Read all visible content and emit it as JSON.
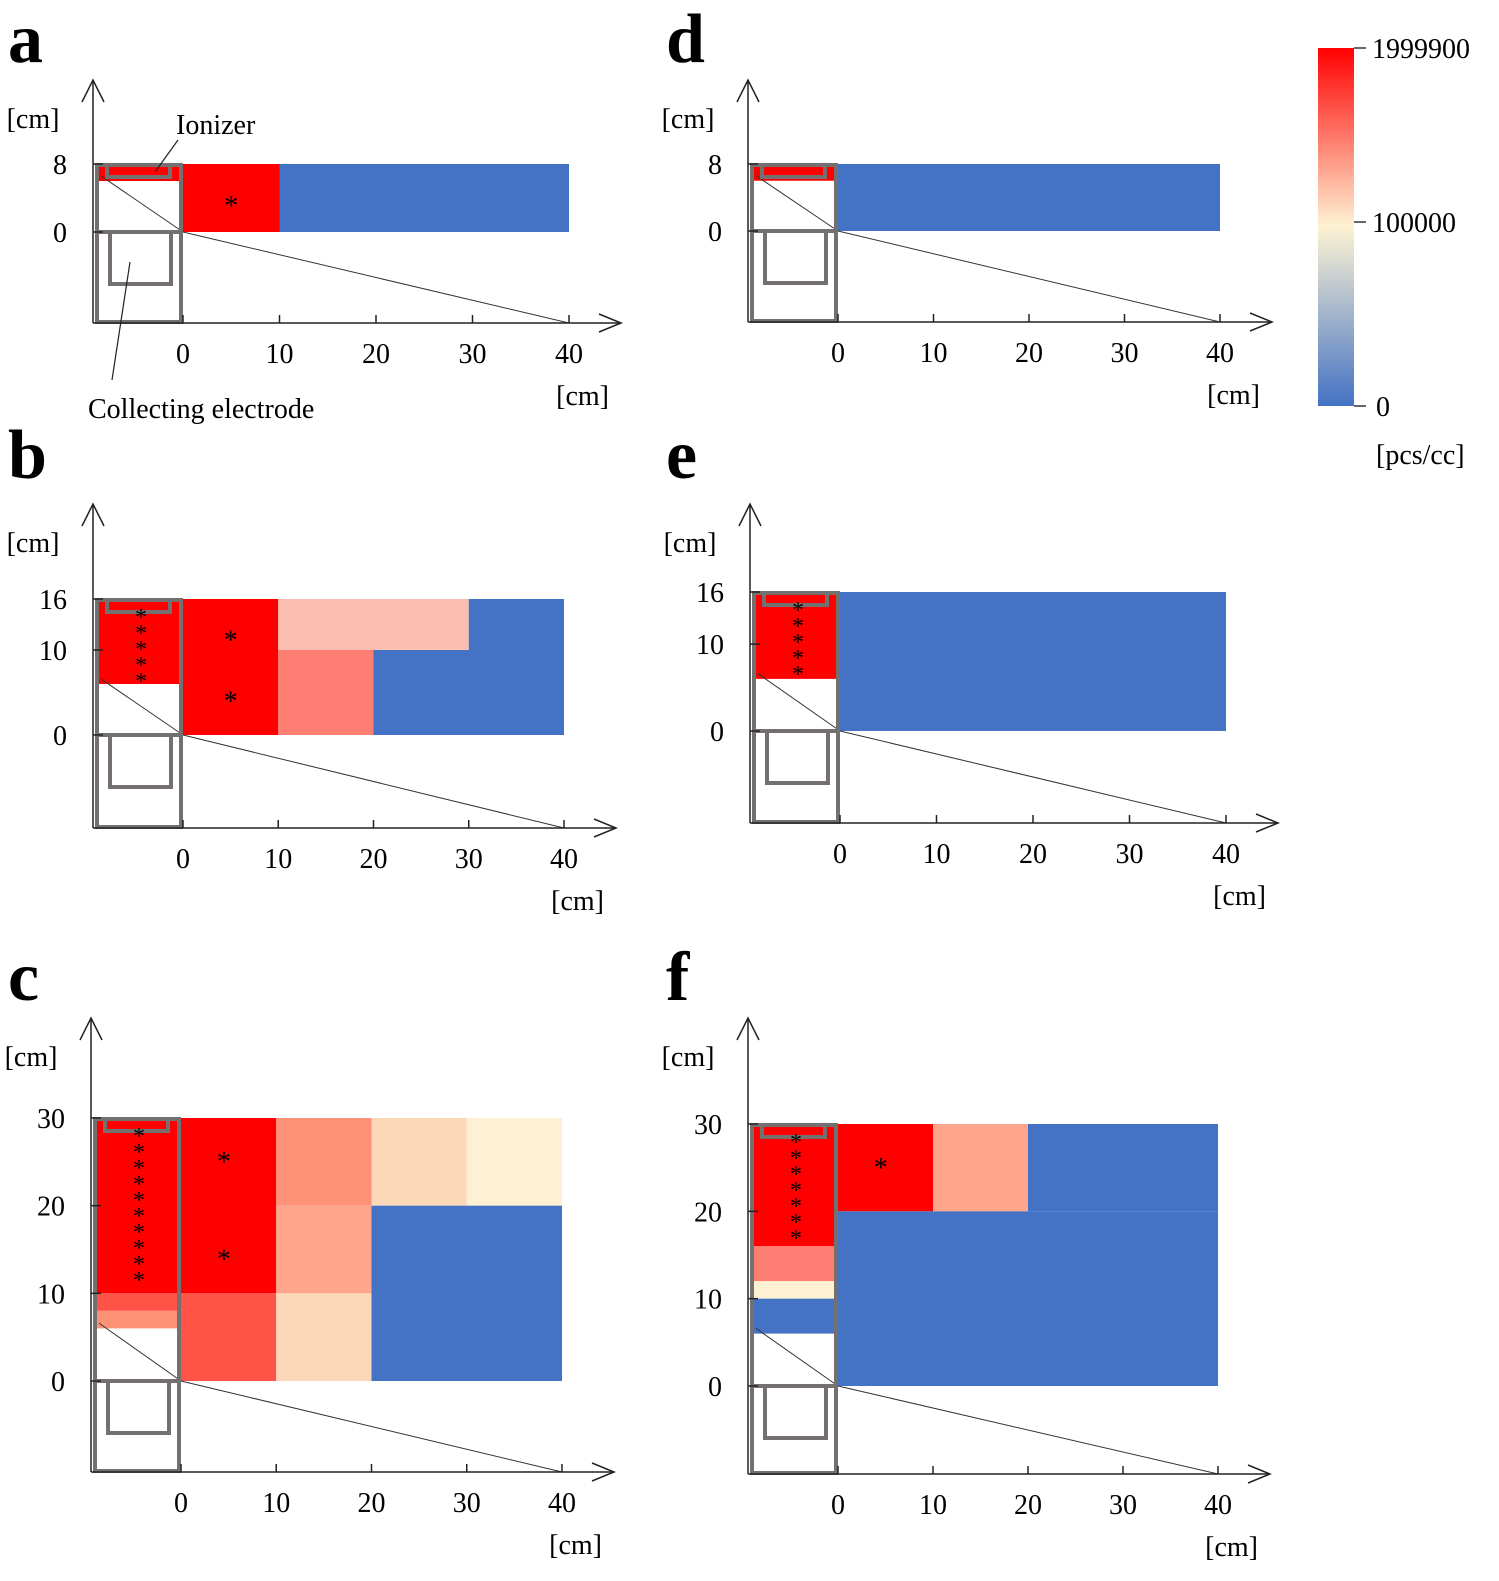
{
  "figure": {
    "annotations": {
      "ionizer": "Ionizer",
      "collecting_electrode": "Collecting electrode"
    },
    "colorbar": {
      "max_label": "1999900",
      "mid_label": "100000",
      "min_label": "0",
      "unit": "[pcs/cc]",
      "colors": {
        "high": "#ff0000",
        "mid": "#fdf3d4",
        "low": "#4472c4"
      }
    },
    "colors": {
      "red": "#ff0000",
      "blue": "#4472c4",
      "salmon_light": "#fbbfb1",
      "salmon": "#fe7e74",
      "salmon_med": "#fd9279",
      "salmon_pale": "#fea68c",
      "peach": "#fdd8b8",
      "cream": "#fef0d2",
      "red_soft": "#ff5347",
      "structure": "#757070"
    }
  },
  "chart_data": [
    {
      "panel": "a",
      "type": "heatmap",
      "xlabel": "[cm]",
      "ylabel": "[cm]",
      "xticks": [
        "0",
        "10",
        "20",
        "30",
        "40"
      ],
      "yticks": [
        {
          "v": 0,
          "label": "0"
        },
        {
          "v": 8,
          "label": "8"
        }
      ],
      "ymax": 8,
      "xlim": [
        0,
        40
      ],
      "cells": [
        {
          "x0": 0,
          "x1": 10,
          "y0": 0,
          "y1": 8,
          "color": "red"
        },
        {
          "x0": 10,
          "x1": 40,
          "y0": 0,
          "y1": 8,
          "color": "blue"
        }
      ],
      "inner_cells": [
        {
          "y0": 6,
          "y1": 8,
          "color": "red"
        }
      ],
      "stars": [
        {
          "x": 5,
          "y": 3.4
        }
      ],
      "inner_stars_count": 0,
      "show_annotations": true
    },
    {
      "panel": "b",
      "type": "heatmap",
      "xlabel": "[cm]",
      "ylabel": "[cm]",
      "xticks": [
        "0",
        "10",
        "20",
        "30",
        "40"
      ],
      "yticks": [
        {
          "v": 0,
          "label": "0"
        },
        {
          "v": 10,
          "label": "10"
        },
        {
          "v": 16,
          "label": "16"
        }
      ],
      "ymax": 16,
      "xlim": [
        0,
        40
      ],
      "cells": [
        {
          "x0": 0,
          "x1": 10,
          "y0": 0,
          "y1": 16,
          "color": "red"
        },
        {
          "x0": 10,
          "x1": 20,
          "y0": 10,
          "y1": 16,
          "color": "salmon_light"
        },
        {
          "x0": 20,
          "x1": 30,
          "y0": 10,
          "y1": 16,
          "color": "salmon_light"
        },
        {
          "x0": 30,
          "x1": 40,
          "y0": 10,
          "y1": 16,
          "color": "blue"
        },
        {
          "x0": 10,
          "x1": 20,
          "y0": 0,
          "y1": 10,
          "color": "salmon"
        },
        {
          "x0": 20,
          "x1": 40,
          "y0": 0,
          "y1": 10,
          "color": "blue"
        }
      ],
      "inner_cells": [
        {
          "y0": 6,
          "y1": 16,
          "color": "red"
        }
      ],
      "stars": [
        {
          "x": 5,
          "y": 11.5
        },
        {
          "x": 5,
          "y": 4.3
        }
      ],
      "inner_stars_count": 5,
      "show_annotations": false
    },
    {
      "panel": "c",
      "type": "heatmap",
      "xlabel": "[cm]",
      "ylabel": "[cm]",
      "xticks": [
        "0",
        "10",
        "20",
        "30",
        "40"
      ],
      "yticks": [
        {
          "v": 0,
          "label": "0"
        },
        {
          "v": 10,
          "label": "10"
        },
        {
          "v": 20,
          "label": "20"
        },
        {
          "v": 30,
          "label": "30"
        }
      ],
      "ymax": 30,
      "xlim": [
        0,
        40
      ],
      "cells": [
        {
          "x0": 0,
          "x1": 10,
          "y0": 10,
          "y1": 30,
          "color": "red"
        },
        {
          "x0": 0,
          "x1": 10,
          "y0": 0,
          "y1": 10,
          "color": "red_soft"
        },
        {
          "x0": 10,
          "x1": 20,
          "y0": 20,
          "y1": 30,
          "color": "salmon_med"
        },
        {
          "x0": 10,
          "x1": 20,
          "y0": 10,
          "y1": 20,
          "color": "salmon_pale"
        },
        {
          "x0": 10,
          "x1": 20,
          "y0": 0,
          "y1": 10,
          "color": "peach"
        },
        {
          "x0": 20,
          "x1": 30,
          "y0": 20,
          "y1": 30,
          "color": "peach"
        },
        {
          "x0": 30,
          "x1": 40,
          "y0": 20,
          "y1": 30,
          "color": "cream"
        },
        {
          "x0": 20,
          "x1": 40,
          "y0": 0,
          "y1": 20,
          "color": "blue"
        }
      ],
      "inner_cells": [
        {
          "y0": 10,
          "y1": 30,
          "color": "red"
        },
        {
          "y0": 8,
          "y1": 10,
          "color": "red_soft"
        },
        {
          "y0": 6,
          "y1": 8,
          "color": "salmon_med"
        }
      ],
      "stars": [
        {
          "x": 4.5,
          "y": 25.3
        },
        {
          "x": 4.5,
          "y": 14.2
        }
      ],
      "inner_stars_count": 10,
      "show_annotations": false
    },
    {
      "panel": "d",
      "type": "heatmap",
      "xlabel": "[cm]",
      "ylabel": "[cm]",
      "xticks": [
        "0",
        "10",
        "20",
        "30",
        "40"
      ],
      "yticks": [
        {
          "v": 0,
          "label": "0"
        },
        {
          "v": 8,
          "label": "8"
        }
      ],
      "ymax": 8,
      "xlim": [
        0,
        40
      ],
      "cells": [
        {
          "x0": 0,
          "x1": 40,
          "y0": 0,
          "y1": 8,
          "color": "blue"
        }
      ],
      "inner_cells": [
        {
          "y0": 6,
          "y1": 8,
          "color": "red"
        }
      ],
      "stars": [],
      "inner_stars_count": 0,
      "show_annotations": false
    },
    {
      "panel": "e",
      "type": "heatmap",
      "xlabel": "[cm]",
      "ylabel": "[cm]",
      "xticks": [
        "0",
        "10",
        "20",
        "30",
        "40"
      ],
      "yticks": [
        {
          "v": 0,
          "label": "0"
        },
        {
          "v": 10,
          "label": "10"
        },
        {
          "v": 16,
          "label": "16"
        }
      ],
      "ymax": 16,
      "xlim": [
        0,
        40
      ],
      "cells": [
        {
          "x0": 0,
          "x1": 40,
          "y0": 0,
          "y1": 16,
          "color": "blue"
        }
      ],
      "inner_cells": [
        {
          "y0": 6,
          "y1": 16,
          "color": "red"
        }
      ],
      "stars": [],
      "inner_stars_count": 5,
      "show_annotations": false
    },
    {
      "panel": "f",
      "type": "heatmap",
      "xlabel": "[cm]",
      "ylabel": "[cm]",
      "xticks": [
        "0",
        "10",
        "20",
        "30",
        "40"
      ],
      "yticks": [
        {
          "v": 0,
          "label": "0"
        },
        {
          "v": 10,
          "label": "10"
        },
        {
          "v": 20,
          "label": "20"
        },
        {
          "v": 30,
          "label": "30"
        }
      ],
      "ymax": 30,
      "xlim": [
        0,
        40
      ],
      "cells": [
        {
          "x0": 0,
          "x1": 10,
          "y0": 20,
          "y1": 30,
          "color": "red"
        },
        {
          "x0": 10,
          "x1": 20,
          "y0": 20,
          "y1": 30,
          "color": "salmon_pale"
        },
        {
          "x0": 20,
          "x1": 40,
          "y0": 20,
          "y1": 30,
          "color": "blue"
        },
        {
          "x0": 0,
          "x1": 40,
          "y0": 0,
          "y1": 20,
          "color": "blue"
        }
      ],
      "inner_cells": [
        {
          "y0": 16,
          "y1": 30,
          "color": "red"
        },
        {
          "y0": 12,
          "y1": 16,
          "color": "salmon"
        },
        {
          "y0": 10,
          "y1": 12,
          "color": "cream"
        },
        {
          "y0": 6,
          "y1": 10,
          "color": "blue"
        }
      ],
      "stars": [
        {
          "x": 4.5,
          "y": 25.3
        }
      ],
      "inner_stars_count": 7,
      "show_annotations": false
    }
  ]
}
